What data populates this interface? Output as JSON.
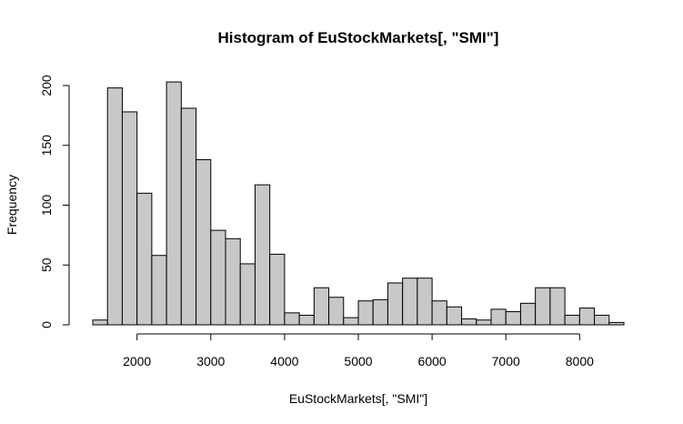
{
  "chart_data": {
    "type": "bar",
    "title": "Histogram of EuStockMarkets[, \"SMI\"]",
    "xlabel": "EuStockMarkets[, \"SMI\"]",
    "ylabel": "Frequency",
    "bin_width": 200,
    "bin_start": 1400,
    "values": [
      4,
      198,
      178,
      110,
      58,
      203,
      181,
      138,
      79,
      72,
      51,
      117,
      59,
      10,
      8,
      31,
      23,
      6,
      20,
      21,
      35,
      39,
      39,
      20,
      15,
      5,
      4,
      13,
      11,
      18,
      31,
      31,
      8,
      14,
      8,
      2
    ],
    "xlim": [
      1400,
      8600
    ],
    "ylim": [
      0,
      200
    ],
    "x_ticks": [
      2000,
      3000,
      4000,
      5000,
      6000,
      7000,
      8000
    ],
    "y_ticks": [
      0,
      50,
      100,
      150,
      200
    ],
    "bar_color": "#c8c8c8",
    "grid": false,
    "legend": "none"
  }
}
